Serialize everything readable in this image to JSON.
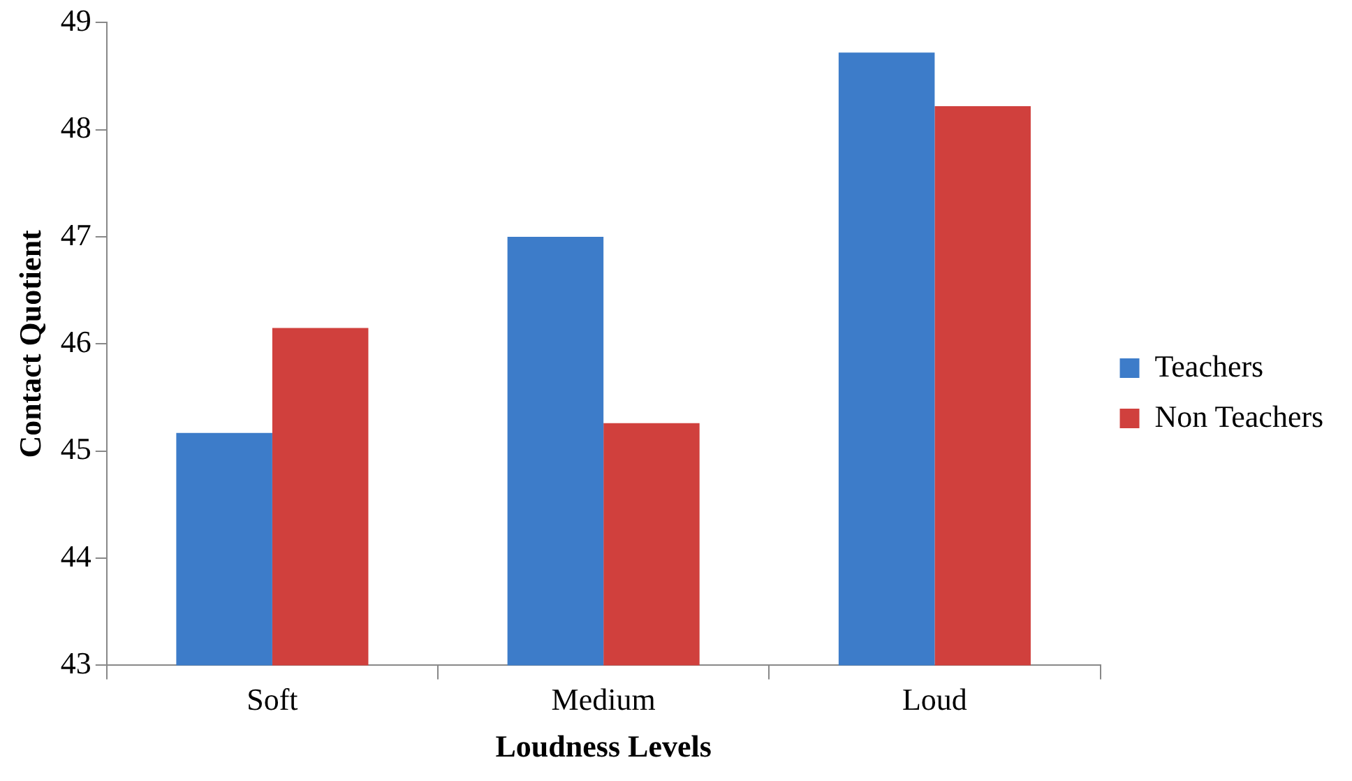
{
  "chart_data": {
    "type": "bar",
    "xlabel": "Loudness Levels",
    "ylabel": "Contact Quotient",
    "categories": [
      "Soft",
      "Medium",
      "Loud"
    ],
    "series": [
      {
        "name": "Teachers",
        "color": "#3d7cc9",
        "values": [
          45.17,
          47.0,
          48.72
        ]
      },
      {
        "name": "Non Teachers",
        "color": "#d0403d",
        "values": [
          46.15,
          45.26,
          48.22
        ]
      }
    ],
    "ylim": [
      43,
      49
    ],
    "yticks": [
      43,
      44,
      45,
      46,
      47,
      48,
      49
    ],
    "grid": false,
    "legend": "right"
  }
}
